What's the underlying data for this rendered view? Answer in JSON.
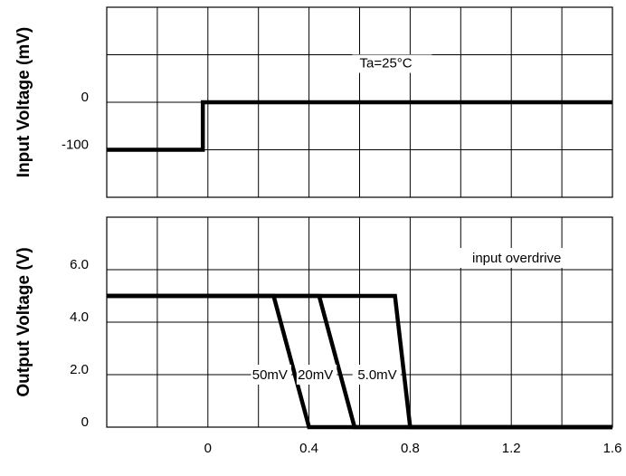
{
  "chart_data": [
    {
      "type": "line",
      "title": "",
      "xlabel": "",
      "ylabel": "Input Voltage (mV)",
      "xlim": [
        -0.4,
        1.6
      ],
      "ylim": [
        -200,
        200
      ],
      "y_grid": [
        -200,
        -100,
        0,
        100,
        200
      ],
      "y_ticks": [
        {
          "value": 0,
          "label": "0"
        },
        {
          "value": -100,
          "label": "-100"
        }
      ],
      "grid": true,
      "annotations": [
        {
          "text": "Ta=25°C"
        }
      ],
      "series": [
        {
          "x": [
            -0.4,
            -0.02,
            -0.02,
            1.6
          ],
          "y": [
            -100,
            -100,
            0,
            0
          ]
        }
      ]
    },
    {
      "type": "line",
      "title": "",
      "xlabel": "",
      "ylabel": "Output Voltage (V)",
      "xlim": [
        -0.4,
        1.6
      ],
      "ylim": [
        0,
        8
      ],
      "x_ticks": [
        {
          "value": 0,
          "label": "0"
        },
        {
          "value": 0.4,
          "label": "0.4"
        },
        {
          "value": 0.8,
          "label": "0.8"
        },
        {
          "value": 1.2,
          "label": "1.2"
        },
        {
          "value": 1.6,
          "label": "1.6"
        }
      ],
      "y_ticks": [
        {
          "value": 0,
          "label": "0"
        },
        {
          "value": 2,
          "label": "2.0"
        },
        {
          "value": 4,
          "label": "4.0"
        },
        {
          "value": 6,
          "label": "6.0"
        }
      ],
      "grid": true,
      "legend_title": "input overdrive",
      "series": [
        {
          "name": "50mV",
          "x": [
            -0.4,
            0.26,
            0.4,
            1.6
          ],
          "y": [
            5,
            5,
            0,
            0
          ]
        },
        {
          "name": "20mV",
          "x": [
            -0.4,
            0.44,
            0.58,
            1.6
          ],
          "y": [
            5,
            5,
            0,
            0
          ]
        },
        {
          "name": "5.0mV",
          "x": [
            -0.4,
            0.74,
            0.8,
            1.6
          ],
          "y": [
            5,
            5,
            0,
            0
          ]
        }
      ]
    }
  ]
}
